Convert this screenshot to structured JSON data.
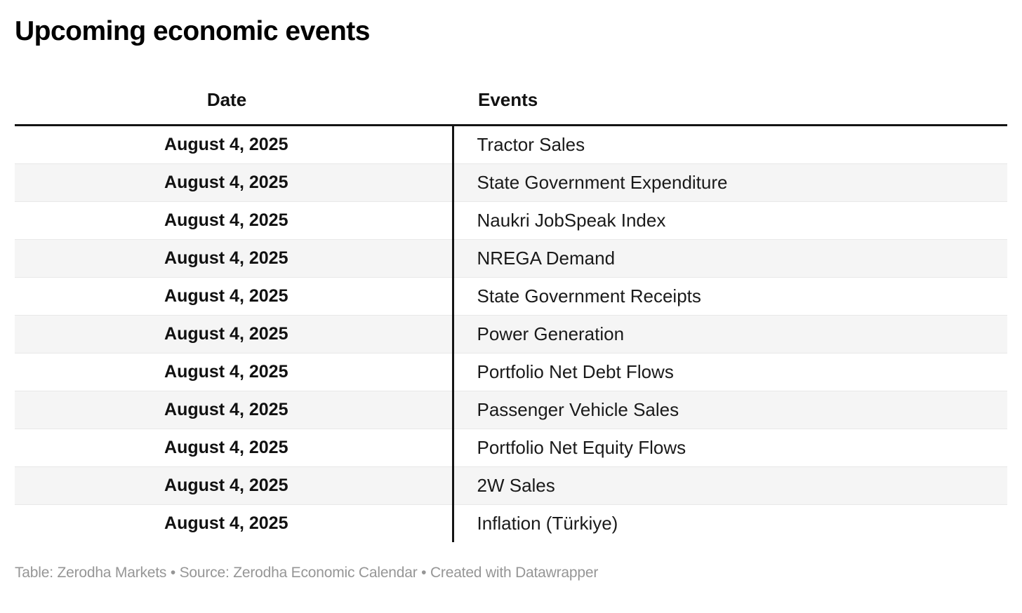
{
  "chart_data": {
    "type": "table",
    "title": "Upcoming economic events",
    "columns": [
      "Date",
      "Events"
    ],
    "rows": [
      [
        "August 4, 2025",
        "Tractor Sales"
      ],
      [
        "August 4, 2025",
        "State Government Expenditure"
      ],
      [
        "August 4, 2025",
        "Naukri JobSpeak Index"
      ],
      [
        "August 4, 2025",
        "NREGA Demand"
      ],
      [
        "August 4, 2025",
        "State Government Receipts"
      ],
      [
        "August 4, 2025",
        "Power Generation"
      ],
      [
        "August 4, 2025",
        "Portfolio Net Debt Flows"
      ],
      [
        "August 4, 2025",
        "Passenger Vehicle Sales"
      ],
      [
        "August 4, 2025",
        "Portfolio Net Equity Flows"
      ],
      [
        "August 4, 2025",
        "2W Sales"
      ],
      [
        "August 4, 2025",
        "Inflation (Türkiye)"
      ]
    ],
    "layout_hints": {
      "date_column_alignment": "center",
      "events_column_alignment": "left",
      "zebra_striping": true,
      "striped_rows": "even"
    }
  },
  "footer": {
    "table_credit": "Table: Zerodha Markets",
    "separator": " • ",
    "source_credit": "Source: Zerodha Economic Calendar",
    "datawrapper_credit": "Created with Datawrapper"
  },
  "colors": {
    "title_text": "#000000",
    "body_text": "#1a1a1a",
    "header_rule": "#141414",
    "column_divider": "#141414",
    "row_stripe": "#f5f5f5",
    "row_divider": "#e8e8e8",
    "footer_text": "#969696",
    "background": "#ffffff"
  }
}
